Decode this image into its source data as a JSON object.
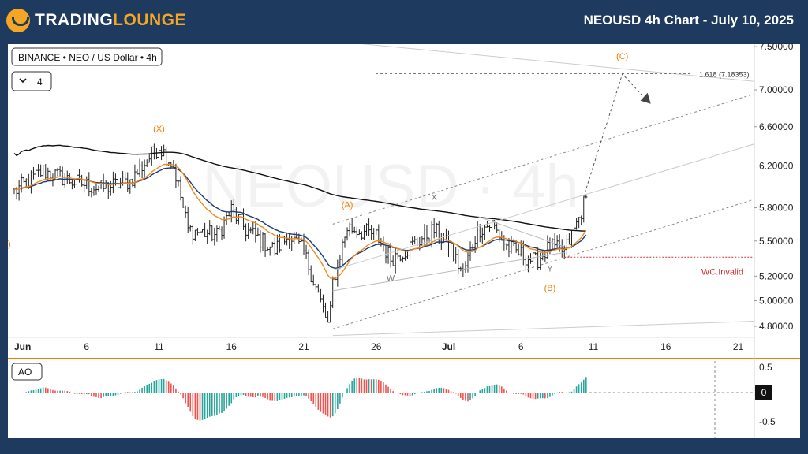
{
  "header": {
    "logo_text_1": "TRADING",
    "logo_text_2": "LOUNGE",
    "title": "NEOUSD 4h Chart - July 10, 2025"
  },
  "legend": {
    "symbol": "BINANCE • NEO / US Dollar • 4h",
    "indicators_toggle": "4"
  },
  "watermark": "NEOUSD · 4h",
  "colors": {
    "bull": "#26a69a",
    "bear": "#ef5350",
    "wave_label": "#f57c00",
    "invalid": "#d32f2f",
    "ema_blue": "#1f3b73",
    "ema_orange": "#ef8a1e",
    "ma_black": "#111111",
    "separator": "#f57c00"
  },
  "chart_data": [
    {
      "type": "candlestick",
      "title": "NEO / US Dollar",
      "exchange": "BINANCE",
      "timeframe": "4h",
      "x_ticks": [
        "Jun",
        "6",
        "11",
        "16",
        "21",
        "26",
        "Jul",
        "6",
        "11",
        "16",
        "21"
      ],
      "y_ticks": [
        "7.50000",
        "7.00000",
        "6.60000",
        "6.20000",
        "5.80000",
        "5.50000",
        "5.20000",
        "5.00000",
        "4.80000"
      ],
      "ylim": [
        4.75,
        7.55
      ],
      "y_scale": "log",
      "price_path": [
        {
          "x": "2025-06-01",
          "y": 5.95
        },
        {
          "x": "2025-06-03",
          "y": 6.15
        },
        {
          "x": "2025-06-05",
          "y": 6.05
        },
        {
          "x": "2025-06-07",
          "y": 5.98
        },
        {
          "x": "2025-06-09",
          "y": 6.05
        },
        {
          "x": "2025-06-11",
          "y": 6.4
        },
        {
          "x": "2025-06-12",
          "y": 6.2
        },
        {
          "x": "2025-06-13",
          "y": 5.6
        },
        {
          "x": "2025-06-15",
          "y": 5.55
        },
        {
          "x": "2025-06-16",
          "y": 5.78
        },
        {
          "x": "2025-06-17",
          "y": 5.6
        },
        {
          "x": "2025-06-19",
          "y": 5.42
        },
        {
          "x": "2025-06-20",
          "y": 5.55
        },
        {
          "x": "2025-06-21",
          "y": 5.4
        },
        {
          "x": "2025-06-22",
          "y": 5.05
        },
        {
          "x": "2025-06-22T18:00",
          "y": 4.78
        },
        {
          "x": "2025-06-23",
          "y": 5.15
        },
        {
          "x": "2025-06-24",
          "y": 5.62
        },
        {
          "x": "2025-06-26",
          "y": 5.55
        },
        {
          "x": "2025-06-27",
          "y": 5.35
        },
        {
          "x": "2025-06-28",
          "y": 5.42
        },
        {
          "x": "2025-06-30",
          "y": 5.6
        },
        {
          "x": "2025-07-01",
          "y": 5.45
        },
        {
          "x": "2025-07-02",
          "y": 5.22
        },
        {
          "x": "2025-07-03",
          "y": 5.6
        },
        {
          "x": "2025-07-04",
          "y": 5.65
        },
        {
          "x": "2025-07-05",
          "y": 5.45
        },
        {
          "x": "2025-07-07",
          "y": 5.32
        },
        {
          "x": "2025-07-08",
          "y": 5.45
        },
        {
          "x": "2025-07-09",
          "y": 5.4
        },
        {
          "x": "2025-07-10",
          "y": 5.7
        },
        {
          "x": "2025-07-10T12:00",
          "y": 5.9
        }
      ],
      "wave_labels": [
        {
          "text": "(X)",
          "x": "2025-06-11",
          "y": 6.55,
          "color": "wave"
        },
        {
          "text": "(A)",
          "x": "2025-06-24",
          "y": 5.8,
          "color": "wave"
        },
        {
          "text": "X",
          "x": "2025-06-30",
          "y": 5.87,
          "color": "grey"
        },
        {
          "text": "W",
          "x": "2025-06-27",
          "y": 5.16,
          "color": "grey"
        },
        {
          "text": "Y",
          "x": "2025-07-08",
          "y": 5.24,
          "color": "grey"
        },
        {
          "text": "(B)",
          "x": "2025-07-08",
          "y": 5.08,
          "color": "wave"
        },
        {
          "text": "(C)",
          "x": "2025-07-13",
          "y": 7.35,
          "color": "wave"
        }
      ],
      "fib_level": {
        "label": "1.618 (7.18353)",
        "value": 7.18353
      },
      "invalidation": {
        "label": "WC.Invalid",
        "value": 5.36
      },
      "projection": [
        {
          "x": "2025-07-10",
          "y": 5.9
        },
        {
          "x": "2025-07-13",
          "y": 7.18
        }
      ]
    },
    {
      "type": "bar",
      "title": "AO",
      "indicator": "Awesome Oscillator",
      "y_ticks": [
        "0.5",
        "0",
        "-0.5"
      ],
      "ylim": [
        -0.75,
        0.6
      ],
      "current_value_label": "0"
    }
  ]
}
